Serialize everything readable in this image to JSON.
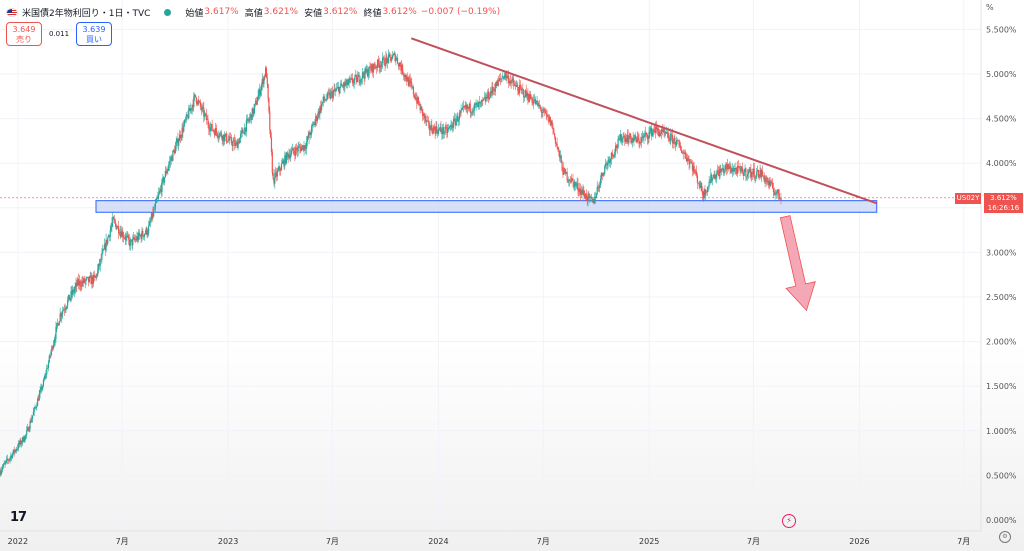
{
  "header": {
    "title": "米国債2年物利回り・1日・TVC",
    "open_label": "始値",
    "open_value": "3.617%",
    "high_label": "高値",
    "high_value": "3.621%",
    "low_label": "安値",
    "low_value": "3.612%",
    "close_label": "終値",
    "close_value": "3.612%",
    "change": "−0.007 (−0.19%)",
    "sell_price": "3.649",
    "sell_label": "売り",
    "buy_price": "3.639",
    "buy_label": "買い",
    "spread": "0.011",
    "unit": "%"
  },
  "last_price_tag": {
    "symbol": "US02Y",
    "value": "3.612%",
    "countdown": "16:26:16"
  },
  "logo_text": "17",
  "event_icon": "lightning-icon",
  "settings_icon": "gear-icon",
  "colors": {
    "candle_up": "#26a69a",
    "candle_down": "#ef5350",
    "trendline": "#c0505a",
    "support_zone": "#c8d6f5",
    "arrow": "#f4a7b4"
  },
  "chart_data": {
    "type": "candlestick",
    "title": "米国債2年物利回り",
    "ylabel": "%",
    "ylim": [
      0,
      5.75
    ],
    "xlim": [
      "2021-12-01",
      "2026-07-31"
    ],
    "y_ticks": [
      "0.000%",
      "0.500%",
      "1.000%",
      "1.500%",
      "2.000%",
      "2.500%",
      "3.000%",
      "3.500%",
      "4.000%",
      "4.500%",
      "5.000%",
      "5.500%"
    ],
    "x_ticks": [
      {
        "date": "2022-01-01",
        "label": "2022"
      },
      {
        "date": "2022-07-01",
        "label": "7月"
      },
      {
        "date": "2023-01-01",
        "label": "2023"
      },
      {
        "date": "2023-07-01",
        "label": "7月"
      },
      {
        "date": "2024-01-01",
        "label": "2024"
      },
      {
        "date": "2024-07-01",
        "label": "7月"
      },
      {
        "date": "2025-01-01",
        "label": "2025"
      },
      {
        "date": "2025-07-01",
        "label": "7月"
      },
      {
        "date": "2026-01-01",
        "label": "2026"
      },
      {
        "date": "2026-07-01",
        "label": "7月"
      }
    ],
    "price_path": [
      [
        "2021-12-01",
        0.55
      ],
      [
        "2022-01-15",
        0.95
      ],
      [
        "2022-02-15",
        1.55
      ],
      [
        "2022-03-15",
        2.3
      ],
      [
        "2022-04-15",
        2.65
      ],
      [
        "2022-05-15",
        2.7
      ],
      [
        "2022-06-15",
        3.35
      ],
      [
        "2022-07-15",
        3.1
      ],
      [
        "2022-08-15",
        3.25
      ],
      [
        "2022-09-15",
        3.9
      ],
      [
        "2022-10-15",
        4.4
      ],
      [
        "2022-11-05",
        4.75
      ],
      [
        "2022-12-01",
        4.4
      ],
      [
        "2023-01-15",
        4.2
      ],
      [
        "2023-02-15",
        4.6
      ],
      [
        "2023-03-08",
        5.05
      ],
      [
        "2023-03-20",
        3.8
      ],
      [
        "2023-04-15",
        4.1
      ],
      [
        "2023-05-15",
        4.2
      ],
      [
        "2023-06-15",
        4.7
      ],
      [
        "2023-07-15",
        4.85
      ],
      [
        "2023-08-15",
        4.95
      ],
      [
        "2023-09-15",
        5.1
      ],
      [
        "2023-10-18",
        5.2
      ],
      [
        "2023-11-15",
        4.85
      ],
      [
        "2023-12-15",
        4.4
      ],
      [
        "2024-01-15",
        4.35
      ],
      [
        "2024-02-15",
        4.6
      ],
      [
        "2024-03-15",
        4.65
      ],
      [
        "2024-04-25",
        5.0
      ],
      [
        "2024-05-15",
        4.85
      ],
      [
        "2024-06-15",
        4.7
      ],
      [
        "2024-07-15",
        4.45
      ],
      [
        "2024-08-05",
        3.9
      ],
      [
        "2024-09-25",
        3.55
      ],
      [
        "2024-10-15",
        3.95
      ],
      [
        "2024-11-15",
        4.3
      ],
      [
        "2024-12-15",
        4.25
      ],
      [
        "2025-01-10",
        4.38
      ],
      [
        "2025-02-15",
        4.25
      ],
      [
        "2025-03-15",
        4.0
      ],
      [
        "2025-04-05",
        3.65
      ],
      [
        "2025-04-20",
        3.85
      ],
      [
        "2025-05-15",
        3.95
      ],
      [
        "2025-06-15",
        3.9
      ],
      [
        "2025-07-15",
        3.88
      ],
      [
        "2025-08-05",
        3.7
      ],
      [
        "2025-08-18",
        3.61
      ]
    ],
    "annotations": {
      "resistance_trendline": {
        "start": [
          "2023-11-15",
          5.4
        ],
        "end": [
          "2026-01-31",
          3.55
        ]
      },
      "support_zone": {
        "x_start": "2021-12-01",
        "x_end": "2026-01-31",
        "y_low": 3.45,
        "y_high": 3.58
      },
      "down_arrow": {
        "start": [
          "2025-08-25",
          3.4
        ],
        "end": [
          "2025-10-01",
          2.35
        ]
      },
      "last_price": 3.612
    }
  }
}
